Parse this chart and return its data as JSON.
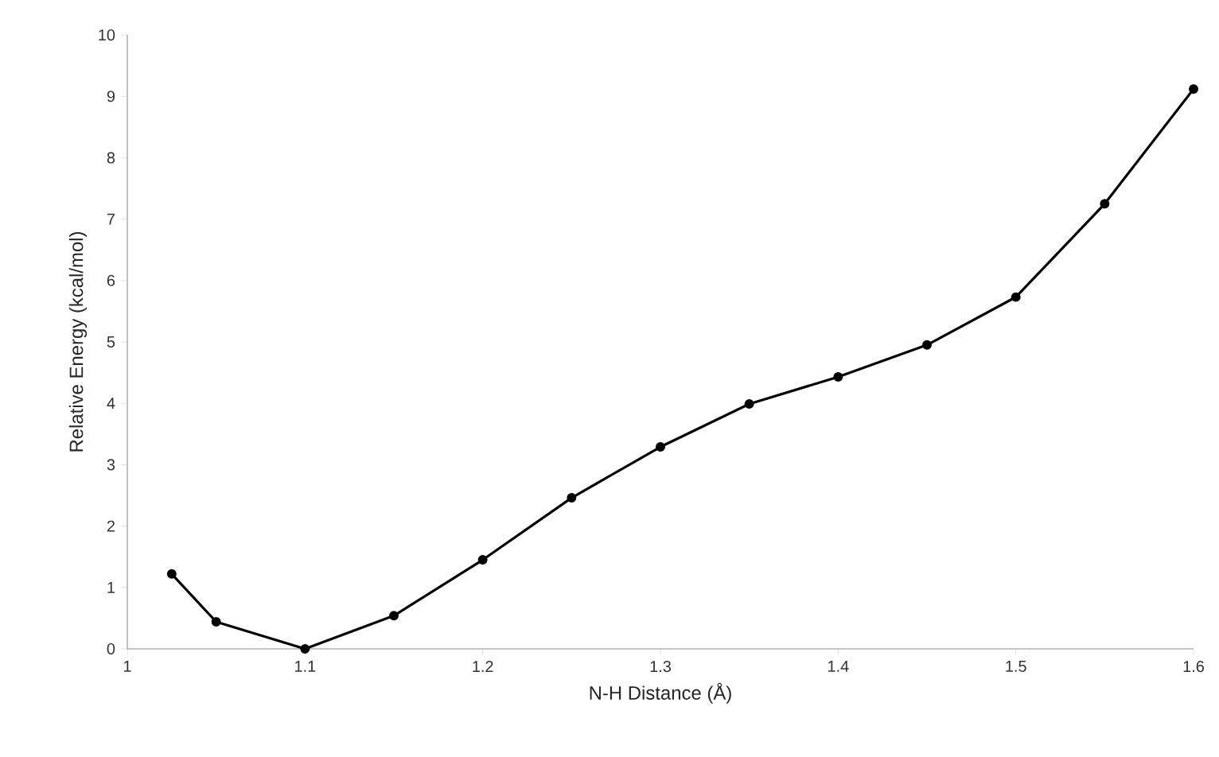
{
  "chart_data": {
    "type": "line",
    "xlabel": "N-H Distance (Å)",
    "ylabel": "Relative Energy (kcal/mol)",
    "x": [
      1.025,
      1.05,
      1.1,
      1.15,
      1.2,
      1.25,
      1.3,
      1.35,
      1.4,
      1.45,
      1.5,
      1.55,
      1.6
    ],
    "series": [
      {
        "color": "#000000",
        "values": [
          1.22,
          0.44,
          0.0,
          0.54,
          1.45,
          2.46,
          3.29,
          3.99,
          4.43,
          4.95,
          5.73,
          7.25,
          9.12
        ]
      }
    ],
    "xlim": [
      1,
      1.6
    ],
    "xticks": [
      1,
      1.1,
      1.2,
      1.3,
      1.4,
      1.5,
      1.6
    ],
    "ylim": [
      0,
      10
    ],
    "yticks": [
      0,
      1,
      2,
      3,
      4,
      5,
      6,
      7,
      8,
      9,
      10
    ],
    "grid": false,
    "marker": "circle",
    "line_style": "solid"
  }
}
